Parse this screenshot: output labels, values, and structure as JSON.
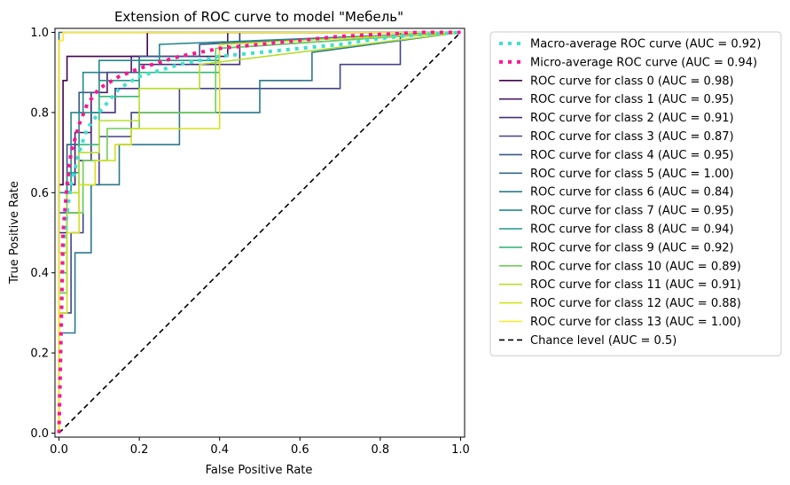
{
  "chart_data": {
    "type": "line",
    "title": "Extension of ROC curve to model \"Мебель\"",
    "xlabel": "False Positive Rate",
    "ylabel": "True Positive Rate",
    "xlim": [
      0,
      1
    ],
    "ylim": [
      0,
      1
    ],
    "xticks": [
      "0.0",
      "0.2",
      "0.4",
      "0.6",
      "0.8",
      "1.0"
    ],
    "yticks": [
      "0.0",
      "0.2",
      "0.4",
      "0.6",
      "0.8",
      "1.0"
    ],
    "grid": false,
    "legend_position": "outside-right",
    "series": [
      {
        "name": "Macro-average ROC curve (AUC = 0.92)",
        "color": "#40e0d0",
        "style": "dotted-thick",
        "x": [
          0.0,
          0.01,
          0.02,
          0.03,
          0.05,
          0.07,
          0.1,
          0.15,
          0.2,
          0.3,
          0.4,
          0.5,
          0.6,
          0.7,
          0.8,
          0.9,
          1.0
        ],
        "y": [
          0.0,
          0.45,
          0.55,
          0.62,
          0.7,
          0.76,
          0.8,
          0.86,
          0.89,
          0.92,
          0.94,
          0.95,
          0.96,
          0.97,
          0.985,
          0.995,
          1.0
        ]
      },
      {
        "name": "Micro-average ROC curve (AUC = 0.94)",
        "color": "#ff1493",
        "style": "dotted-thick",
        "x": [
          0.0,
          0.01,
          0.02,
          0.03,
          0.05,
          0.07,
          0.1,
          0.15,
          0.2,
          0.3,
          0.4,
          0.5,
          0.6,
          0.7,
          0.8,
          0.9,
          1.0
        ],
        "y": [
          0.0,
          0.5,
          0.62,
          0.7,
          0.77,
          0.82,
          0.86,
          0.89,
          0.91,
          0.94,
          0.96,
          0.97,
          0.98,
          0.99,
          0.995,
          1.0,
          1.0
        ]
      },
      {
        "name": "ROC curve for class 0 (AUC = 0.98)",
        "color": "#440154",
        "style": "solid",
        "x": [
          0.0,
          0.0,
          0.01,
          0.01,
          0.02,
          0.02,
          0.22,
          0.22,
          1.0
        ],
        "y": [
          0.0,
          0.62,
          0.62,
          0.88,
          0.88,
          0.94,
          0.94,
          1.0,
          1.0
        ]
      },
      {
        "name": "ROC curve for class 1 (AUC = 0.95)",
        "color": "#481a6c",
        "style": "solid",
        "x": [
          0.0,
          0.0,
          0.02,
          0.02,
          0.04,
          0.04,
          0.08,
          0.08,
          0.12,
          0.12,
          0.18,
          0.18,
          0.42,
          0.42,
          1.0
        ],
        "y": [
          0.0,
          0.5,
          0.5,
          0.62,
          0.62,
          0.75,
          0.75,
          0.85,
          0.85,
          0.9,
          0.9,
          0.94,
          0.94,
          1.0,
          1.0
        ]
      },
      {
        "name": "ROC curve for class 2 (AUC = 0.91)",
        "color": "#472f7d",
        "style": "solid",
        "x": [
          0.0,
          0.0,
          0.02,
          0.02,
          0.05,
          0.05,
          0.08,
          0.08,
          0.14,
          0.14,
          0.2,
          0.2,
          0.45,
          0.45,
          1.0
        ],
        "y": [
          0.0,
          0.35,
          0.35,
          0.55,
          0.55,
          0.68,
          0.68,
          0.8,
          0.8,
          0.86,
          0.86,
          0.92,
          0.92,
          1.0,
          1.0
        ]
      },
      {
        "name": "ROC curve for class 3 (AUC = 0.87)",
        "color": "#414487",
        "style": "solid",
        "x": [
          0.0,
          0.0,
          0.03,
          0.03,
          0.06,
          0.06,
          0.1,
          0.1,
          0.18,
          0.18,
          0.3,
          0.3,
          0.7,
          0.7,
          0.85,
          0.85,
          1.0
        ],
        "y": [
          0.0,
          0.3,
          0.3,
          0.5,
          0.5,
          0.62,
          0.62,
          0.74,
          0.74,
          0.8,
          0.8,
          0.86,
          0.86,
          0.92,
          0.92,
          1.0,
          1.0
        ]
      },
      {
        "name": "ROC curve for class 4 (AUC = 0.95)",
        "color": "#39568c",
        "style": "solid",
        "x": [
          0.0,
          0.0,
          0.02,
          0.02,
          0.05,
          0.05,
          0.1,
          0.1,
          0.2,
          0.2,
          0.35,
          0.35,
          1.0
        ],
        "y": [
          0.0,
          0.55,
          0.55,
          0.72,
          0.72,
          0.85,
          0.85,
          0.9,
          0.9,
          0.94,
          0.94,
          0.97,
          1.0
        ]
      },
      {
        "name": "ROC curve for class 5 (AUC = 1.00)",
        "color": "#31688e",
        "style": "solid",
        "x": [
          0.0,
          0.0,
          1.0
        ],
        "y": [
          0.0,
          1.0,
          1.0
        ]
      },
      {
        "name": "ROC curve for class 6 (AUC = 0.84)",
        "color": "#2a788e",
        "style": "solid",
        "x": [
          0.0,
          0.0,
          0.04,
          0.04,
          0.08,
          0.08,
          0.15,
          0.15,
          0.3,
          0.3,
          0.5,
          0.5,
          0.63,
          0.63,
          1.0
        ],
        "y": [
          0.0,
          0.25,
          0.25,
          0.45,
          0.45,
          0.62,
          0.62,
          0.72,
          0.72,
          0.8,
          0.8,
          0.88,
          0.88,
          0.95,
          1.0
        ]
      },
      {
        "name": "ROC curve for class 7 (AUC = 0.95)",
        "color": "#23888e",
        "style": "solid",
        "x": [
          0.0,
          0.0,
          0.03,
          0.03,
          0.06,
          0.06,
          0.1,
          0.1,
          0.25,
          0.25,
          1.0
        ],
        "y": [
          0.0,
          0.6,
          0.6,
          0.8,
          0.8,
          0.9,
          0.9,
          0.93,
          0.93,
          0.97,
          1.0
        ]
      },
      {
        "name": "ROC curve for class 8 (AUC = 0.94)",
        "color": "#1f988b",
        "style": "solid",
        "x": [
          0.0,
          0.0,
          0.02,
          0.02,
          0.05,
          0.05,
          0.1,
          0.1,
          0.2,
          0.2,
          0.4,
          0.4,
          1.0
        ],
        "y": [
          0.0,
          0.45,
          0.45,
          0.65,
          0.65,
          0.8,
          0.8,
          0.88,
          0.88,
          0.93,
          0.93,
          0.97,
          1.0
        ]
      },
      {
        "name": "ROC curve for class 9 (AUC = 0.92)",
        "color": "#35b779",
        "style": "solid",
        "x": [
          0.0,
          0.0,
          0.02,
          0.02,
          0.05,
          0.05,
          0.1,
          0.1,
          0.2,
          0.2,
          0.4,
          0.4,
          1.0
        ],
        "y": [
          0.0,
          0.4,
          0.4,
          0.6,
          0.6,
          0.72,
          0.72,
          0.84,
          0.84,
          0.9,
          0.9,
          0.96,
          1.0
        ]
      },
      {
        "name": "ROC curve for class 10 (AUC = 0.89)",
        "color": "#6ece58",
        "style": "solid",
        "x": [
          0.0,
          0.0,
          0.02,
          0.02,
          0.06,
          0.06,
          0.12,
          0.12,
          0.2,
          0.2,
          0.39,
          0.39,
          1.0
        ],
        "y": [
          0.0,
          0.35,
          0.35,
          0.55,
          0.55,
          0.68,
          0.68,
          0.76,
          0.76,
          0.8,
          0.8,
          0.96,
          1.0
        ]
      },
      {
        "name": "ROC curve for class 11 (AUC = 0.91)",
        "color": "#b5de2b",
        "style": "solid",
        "x": [
          0.0,
          0.0,
          0.02,
          0.02,
          0.05,
          0.05,
          0.1,
          0.1,
          0.2,
          0.2,
          0.35,
          0.35,
          1.0
        ],
        "y": [
          0.0,
          0.45,
          0.45,
          0.6,
          0.6,
          0.7,
          0.7,
          0.78,
          0.78,
          0.86,
          0.86,
          0.92,
          1.0
        ]
      },
      {
        "name": "ROC curve for class 12 (AUC = 0.88)",
        "color": "#d4e21a",
        "style": "solid",
        "x": [
          0.0,
          0.0,
          0.02,
          0.02,
          0.05,
          0.05,
          0.09,
          0.09,
          0.14,
          0.14,
          0.18,
          0.18,
          0.4,
          0.4,
          1.0
        ],
        "y": [
          0.0,
          0.3,
          0.3,
          0.5,
          0.5,
          0.62,
          0.62,
          0.68,
          0.68,
          0.72,
          0.72,
          0.76,
          0.76,
          0.97,
          1.0
        ]
      },
      {
        "name": "ROC curve for class 13 (AUC = 1.00)",
        "color": "#fde725",
        "style": "solid",
        "x": [
          0.0,
          0.0,
          0.01,
          0.01,
          1.0
        ],
        "y": [
          0.0,
          0.98,
          0.98,
          1.0,
          1.0
        ]
      },
      {
        "name": "Chance level (AUC = 0.5)",
        "color": "#000000",
        "style": "dashed",
        "x": [
          0.0,
          1.0
        ],
        "y": [
          0.0,
          1.0
        ]
      }
    ]
  }
}
